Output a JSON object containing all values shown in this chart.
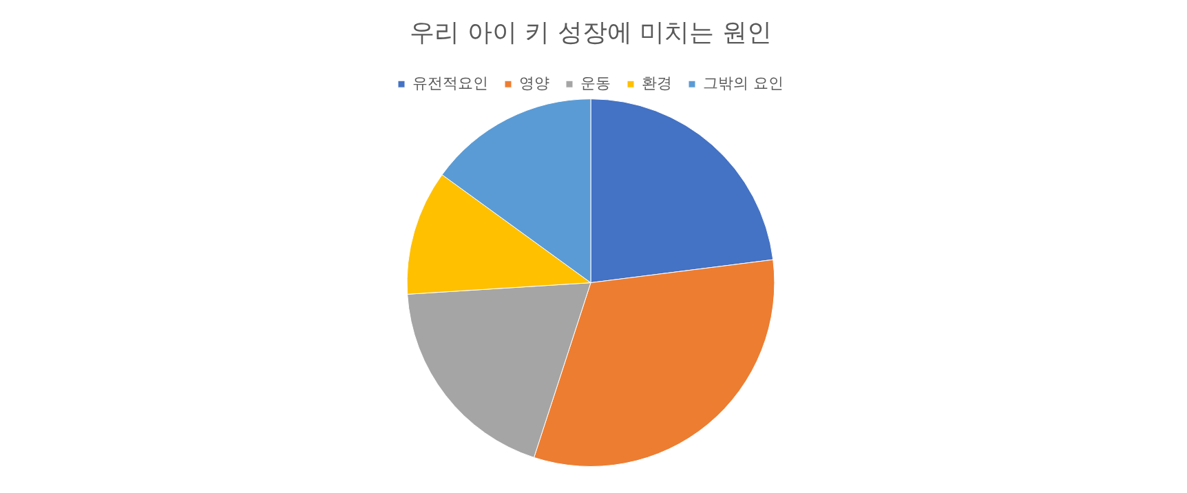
{
  "chart_data": {
    "type": "pie",
    "title": "우리 아이 키 성장에 미치는 원인",
    "categories": [
      "유전적요인",
      "영양",
      "운동",
      "환경",
      "그밖의 요인"
    ],
    "values": [
      23,
      32,
      19,
      11,
      15
    ],
    "colors": [
      "#4472c4",
      "#ed7d31",
      "#a5a5a5",
      "#ffc000",
      "#5b9bd5"
    ],
    "legend": "top"
  }
}
